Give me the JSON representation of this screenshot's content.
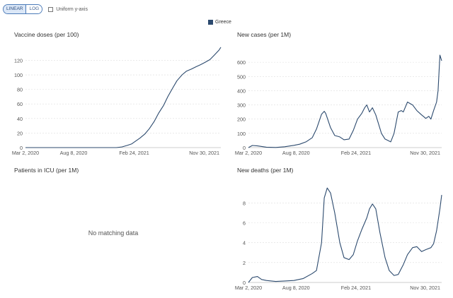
{
  "toolbar": {
    "linear_label": "LINEAR",
    "log_label": "LOG",
    "uniform_label": "Uniform y-axis"
  },
  "legend": {
    "label": "Greece",
    "color": "#2c4a6e"
  },
  "line_color": "#2c4a6e",
  "chart_data": [
    {
      "type": "line",
      "title": "Vaccine doses (per 100)",
      "xlabel": "",
      "ylabel": "",
      "x_ticks": [
        "Mar 2, 2020",
        "Aug 8, 2020",
        "Feb 24, 2021",
        "Nov 30, 2021"
      ],
      "x_range": [
        "2020-03-02",
        "2021-12-07"
      ],
      "y_ticks": [
        0,
        20,
        40,
        60,
        80,
        100,
        120
      ],
      "ylim": [
        0,
        135
      ],
      "grid": true,
      "series": [
        {
          "x": [
            "2020-03-02",
            "2020-12-27",
            "2021-01-15",
            "2021-02-01",
            "2021-02-15",
            "2021-03-01",
            "2021-03-15",
            "2021-04-01",
            "2021-04-15",
            "2021-05-01",
            "2021-05-15",
            "2021-06-01",
            "2021-06-15",
            "2021-07-01",
            "2021-07-15",
            "2021-08-01",
            "2021-08-15",
            "2021-09-01",
            "2021-09-15",
            "2021-10-01",
            "2021-10-15",
            "2021-11-01",
            "2021-11-15",
            "2021-12-01",
            "2021-12-07"
          ],
          "y": [
            0,
            0,
            1,
            3,
            5,
            9,
            13,
            19,
            26,
            36,
            47,
            58,
            70,
            82,
            92,
            100,
            105,
            108,
            111,
            114,
            117,
            121,
            127,
            134,
            138
          ]
        }
      ]
    },
    {
      "type": "line",
      "title": "New cases (per 1M)",
      "xlabel": "",
      "ylabel": "",
      "x_ticks": [
        "Mar 2, 2020",
        "Aug 8, 2020",
        "Feb 24, 2021",
        "Nov 30, 2021"
      ],
      "x_range": [
        "2020-03-02",
        "2021-12-07"
      ],
      "y_ticks": [
        0,
        100,
        200,
        300,
        400,
        500,
        600
      ],
      "ylim": [
        0,
        690
      ],
      "grid": true,
      "series": [
        {
          "x": [
            "2020-03-02",
            "2020-03-15",
            "2020-04-01",
            "2020-05-01",
            "2020-06-01",
            "2020-07-01",
            "2020-08-01",
            "2020-08-20",
            "2020-09-10",
            "2020-10-01",
            "2020-10-15",
            "2020-11-01",
            "2020-11-10",
            "2020-11-15",
            "2020-12-01",
            "2020-12-15",
            "2021-01-01",
            "2021-01-15",
            "2021-02-01",
            "2021-02-15",
            "2021-03-01",
            "2021-03-15",
            "2021-03-25",
            "2021-04-01",
            "2021-04-10",
            "2021-04-20",
            "2021-05-01",
            "2021-05-20",
            "2021-06-01",
            "2021-06-20",
            "2021-07-01",
            "2021-07-15",
            "2021-07-25",
            "2021-08-01",
            "2021-08-15",
            "2021-09-01",
            "2021-09-15",
            "2021-10-01",
            "2021-10-15",
            "2021-10-25",
            "2021-11-01",
            "2021-11-10",
            "2021-11-20",
            "2021-11-25",
            "2021-12-01",
            "2021-12-07"
          ],
          "y": [
            0,
            15,
            12,
            3,
            1,
            6,
            16,
            24,
            40,
            70,
            130,
            235,
            255,
            240,
            140,
            85,
            75,
            55,
            60,
            120,
            200,
            240,
            280,
            300,
            250,
            280,
            230,
            100,
            60,
            40,
            100,
            250,
            260,
            250,
            320,
            300,
            260,
            230,
            205,
            220,
            200,
            260,
            320,
            400,
            650,
            610
          ]
        }
      ]
    },
    {
      "type": "line",
      "title": "Patients in ICU (per 1M)",
      "no_data_text": "No matching data",
      "series": []
    },
    {
      "type": "line",
      "title": "New deaths (per 1M)",
      "xlabel": "",
      "ylabel": "",
      "x_ticks": [
        "Mar 2, 2020",
        "Aug 8, 2020",
        "Feb 24, 2021",
        "Nov 30, 2021"
      ],
      "x_range": [
        "2020-03-02",
        "2021-12-07"
      ],
      "y_ticks": [
        0,
        2,
        4,
        6,
        8
      ],
      "ylim": [
        0,
        9.8
      ],
      "grid": true,
      "series": [
        {
          "x": [
            "2020-03-02",
            "2020-03-15",
            "2020-04-01",
            "2020-04-15",
            "2020-05-01",
            "2020-06-01",
            "2020-07-01",
            "2020-08-01",
            "2020-09-01",
            "2020-10-01",
            "2020-10-15",
            "2020-11-01",
            "2020-11-10",
            "2020-11-20",
            "2020-12-01",
            "2020-12-15",
            "2021-01-01",
            "2021-01-15",
            "2021-02-01",
            "2021-02-15",
            "2021-03-01",
            "2021-03-15",
            "2021-04-01",
            "2021-04-10",
            "2021-04-20",
            "2021-05-01",
            "2021-05-15",
            "2021-06-01",
            "2021-06-15",
            "2021-07-01",
            "2021-07-15",
            "2021-08-01",
            "2021-08-15",
            "2021-09-01",
            "2021-09-15",
            "2021-10-01",
            "2021-10-15",
            "2021-11-01",
            "2021-11-10",
            "2021-11-20",
            "2021-12-01",
            "2021-12-07"
          ],
          "y": [
            0,
            0.5,
            0.6,
            0.3,
            0.2,
            0.1,
            0.15,
            0.2,
            0.4,
            0.9,
            1.2,
            4,
            8.5,
            9.5,
            9,
            7,
            4,
            2.5,
            2.3,
            2.8,
            4.2,
            5.3,
            6.5,
            7.4,
            7.9,
            7.4,
            5,
            2.5,
            1.2,
            0.7,
            0.8,
            1.8,
            2.8,
            3.5,
            3.6,
            3.1,
            3.3,
            3.5,
            3.9,
            5.2,
            7.4,
            8.8
          ]
        }
      ]
    }
  ]
}
